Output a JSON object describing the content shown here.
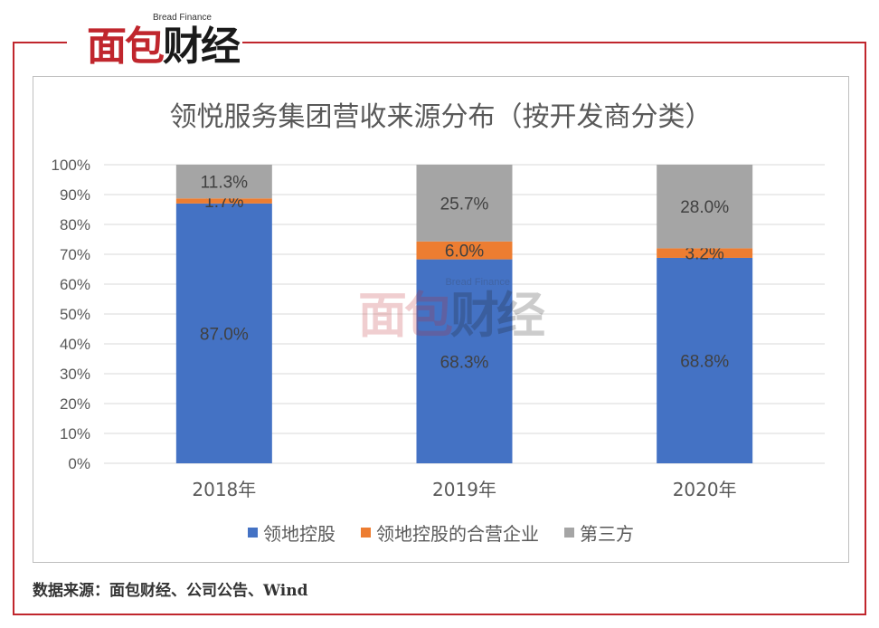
{
  "logo": {
    "en": "Bread Finance",
    "cn_part1": "面包",
    "cn_part2": "财经"
  },
  "watermark": {
    "en": "Bread Finance",
    "cn_part1": "面包",
    "cn_part2": "财经"
  },
  "source_note": "数据来源：面包财经、公司公告、Wind",
  "colors": {
    "frame": "#c0262d",
    "gridline": "#d9d9d9",
    "text": "#595959"
  },
  "chart_data": {
    "type": "bar",
    "stacked": true,
    "title": "领悦服务集团营收来源分布（按开发商分类）",
    "categories": [
      "2018年",
      "2019年",
      "2020年"
    ],
    "series": [
      {
        "name": "领地控股",
        "color": "#4472c4",
        "values": [
          87.0,
          68.3,
          68.8
        ],
        "labels": [
          "87.0%",
          "68.3%",
          "68.8%"
        ]
      },
      {
        "name": "领地控股的合营企业",
        "color": "#ed7d31",
        "values": [
          1.7,
          6.0,
          3.2
        ],
        "labels": [
          "1.7%",
          "6.0%",
          "3.2%"
        ]
      },
      {
        "name": "第三方",
        "color": "#a5a5a5",
        "values": [
          11.3,
          25.7,
          28.0
        ],
        "labels": [
          "11.3%",
          "25.7%",
          "28.0%"
        ]
      }
    ],
    "ylim": [
      0,
      100
    ],
    "yticks": [
      "0%",
      "10%",
      "20%",
      "30%",
      "40%",
      "50%",
      "60%",
      "70%",
      "80%",
      "90%",
      "100%"
    ],
    "grid": true,
    "legend_position": "bottom"
  }
}
